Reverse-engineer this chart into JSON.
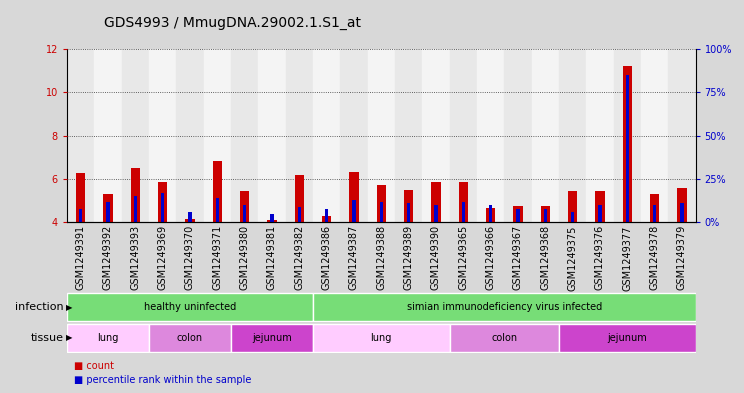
{
  "title": "GDS4993 / MmugDNA.29002.1.S1_at",
  "samples": [
    "GSM1249391",
    "GSM1249392",
    "GSM1249393",
    "GSM1249369",
    "GSM1249370",
    "GSM1249371",
    "GSM1249380",
    "GSM1249381",
    "GSM1249382",
    "GSM1249386",
    "GSM1249387",
    "GSM1249388",
    "GSM1249389",
    "GSM1249390",
    "GSM1249365",
    "GSM1249366",
    "GSM1249367",
    "GSM1249368",
    "GSM1249375",
    "GSM1249376",
    "GSM1249377",
    "GSM1249378",
    "GSM1249379"
  ],
  "count_values": [
    6.3,
    5.3,
    6.5,
    5.85,
    4.15,
    6.85,
    5.45,
    4.1,
    6.2,
    4.3,
    6.35,
    5.75,
    5.5,
    5.85,
    5.85,
    4.65,
    4.75,
    4.75,
    5.45,
    5.45,
    11.2,
    5.3,
    5.6
  ],
  "percentile_values": [
    8,
    12,
    15,
    17,
    6,
    14,
    10,
    5,
    9,
    8,
    13,
    12,
    11,
    10,
    12,
    10,
    8,
    8,
    6,
    10,
    85,
    10,
    11
  ],
  "y_min": 4.0,
  "y_max": 12.0,
  "y_right_ticks": [
    0,
    25,
    50,
    75,
    100
  ],
  "y_left_ticks": [
    4,
    6,
    8,
    10,
    12
  ],
  "bar_color_red": "#cc0000",
  "bar_color_blue": "#0000cc",
  "bar_width": 0.35,
  "blue_bar_width": 0.12,
  "infection_groups": [
    {
      "label": "healthy uninfected",
      "start": 0,
      "end": 9,
      "color": "#77dd77"
    },
    {
      "label": "simian immunodeficiency virus infected",
      "start": 9,
      "end": 23,
      "color": "#77dd77"
    }
  ],
  "tissue_groups": [
    {
      "label": "lung",
      "start": 0,
      "end": 3,
      "color": "#ffccff"
    },
    {
      "label": "colon",
      "start": 3,
      "end": 6,
      "color": "#dd88dd"
    },
    {
      "label": "jejunum",
      "start": 6,
      "end": 9,
      "color": "#cc44cc"
    },
    {
      "label": "lung",
      "start": 9,
      "end": 14,
      "color": "#ffccff"
    },
    {
      "label": "colon",
      "start": 14,
      "end": 18,
      "color": "#dd88dd"
    },
    {
      "label": "jejunum",
      "start": 18,
      "end": 23,
      "color": "#cc44cc"
    }
  ],
  "col_bg_even": "#e8e8e8",
  "col_bg_odd": "#f4f4f4",
  "bg_color": "#d8d8d8",
  "plot_bg_color": "#ffffff",
  "grid_color": "#333333",
  "label_infection": "infection",
  "label_tissue": "tissue",
  "legend_count": "count",
  "legend_percentile": "percentile rank within the sample",
  "title_fontsize": 10,
  "tick_fontsize": 7,
  "annotation_fontsize": 7,
  "label_fontsize": 8
}
